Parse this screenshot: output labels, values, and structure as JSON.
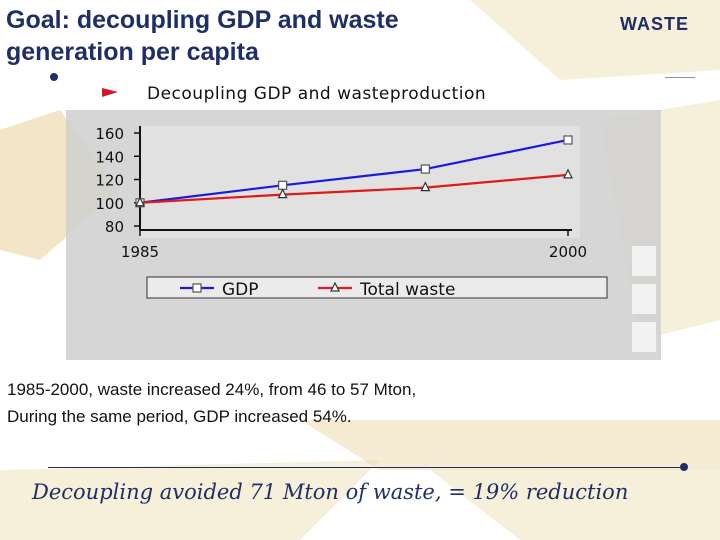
{
  "slide": {
    "title_line1": "Goal: decoupling GDP and waste",
    "title_line2": "generation per capita",
    "logo_text": "WASTE",
    "caption_line1": "1985-2000, waste increased 24%, from 46 to 57 Mton,",
    "caption_line2": "During the same period, GDP increased 54%.",
    "conclusion": "Decoupling avoided 71 Mton of waste, = 19% reduction"
  },
  "colors": {
    "title": "#1f2e66",
    "gdp_line": "#1a1adf",
    "waste_line": "#e01a1a",
    "flag": "#d4142a",
    "plot_bg": "#cfcfcf",
    "deco": "#ecdcae"
  },
  "chart_data": {
    "type": "line",
    "title": "Decoupling GDP and wasteproduction",
    "x": [
      1985,
      1990,
      1995,
      2000
    ],
    "x_tick_labels": [
      "1985",
      "2000"
    ],
    "ylim": [
      80,
      160
    ],
    "y_ticks": [
      80,
      100,
      120,
      140,
      160
    ],
    "grid": false,
    "legend_position": "bottom",
    "series": [
      {
        "name": "GDP",
        "marker": "square",
        "color": "#1a1adf",
        "values": [
          100,
          115,
          129,
          154
        ]
      },
      {
        "name": "Total waste",
        "marker": "triangle",
        "color": "#e01a1a",
        "values": [
          100,
          107,
          113,
          124
        ]
      }
    ]
  }
}
